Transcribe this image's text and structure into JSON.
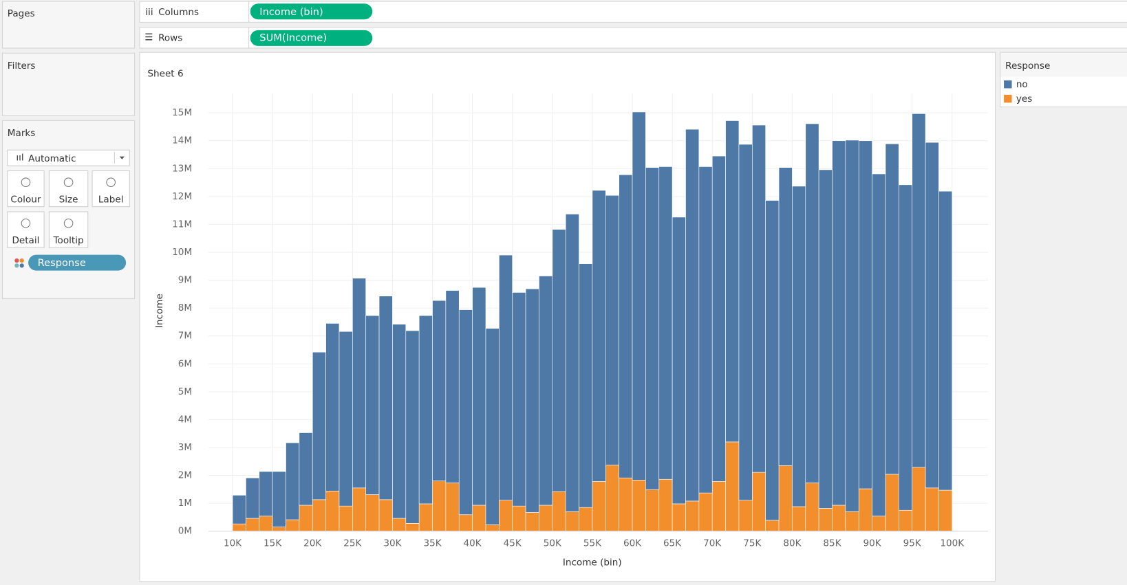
{
  "ui": {
    "pages": "Pages",
    "columns": "Columns",
    "columns_pill": "Income (bin)",
    "rows": "Rows",
    "rows_pill": "SUM(Income)",
    "filters": "Filters",
    "marks": "Marks",
    "mark_type": "Automatic",
    "buttons": [
      "Colour",
      "Size",
      "Label",
      "Detail",
      "Tooltip"
    ],
    "color_pill": "Response",
    "legend_title": "Response"
  },
  "chart_data": {
    "type": "histogram",
    "stacked": true,
    "title": "Sheet 6",
    "xlabel": "Income (bin)",
    "ylabel": "Income",
    "grid": true,
    "bins": [
      10000,
      11666.67,
      13333.33,
      15000,
      16666.67,
      18333.33,
      20000,
      21666.67,
      23333.33,
      25000,
      26666.67,
      28333.33,
      30000,
      31666.67,
      33333.33,
      35000,
      36666.67,
      38333.33,
      40000,
      41666.67,
      43333.33,
      45000,
      46666.67,
      48333.33,
      50000,
      51666.67,
      53333.33,
      55000,
      56666.67,
      58333.33,
      60000,
      61666.67,
      63333.33,
      65000,
      66666.67,
      68333.33,
      70000,
      71666.67,
      73333.33,
      75000,
      76666.67,
      78333.33,
      80000,
      81666.67,
      83333.33,
      85000,
      86666.67,
      88333.33,
      90000,
      91666.67,
      93333.33,
      95000,
      96666.67,
      98333.33,
      100000
    ],
    "series": [
      {
        "name": "yes",
        "color": "#f28e2b",
        "values": [
          260000,
          460000,
          540000,
          150000,
          410000,
          930000,
          1130000,
          1440000,
          900000,
          1550000,
          1310000,
          1130000,
          460000,
          280000,
          980000,
          1800000,
          1730000,
          590000,
          930000,
          230000,
          1110000,
          900000,
          670000,
          930000,
          1420000,
          700000,
          850000,
          1780000,
          2370000,
          1910000,
          1830000,
          1490000,
          1860000,
          980000,
          1080000,
          1370000,
          1780000,
          3200000,
          1110000,
          2110000,
          390000,
          2350000,
          880000,
          1730000,
          820000,
          930000,
          700000,
          1520000,
          540000,
          2040000,
          750000,
          2290000,
          1550000,
          1470000
        ]
      },
      {
        "name": "no",
        "color": "#4e79a7",
        "values": [
          1030000,
          1450000,
          1600000,
          1990000,
          2760000,
          2600000,
          5290000,
          6010000,
          6260000,
          7520000,
          6420000,
          7300000,
          6960000,
          6910000,
          6750000,
          6470000,
          6900000,
          7350000,
          7810000,
          7040000,
          8790000,
          7660000,
          8020000,
          8220000,
          9400000,
          10670000,
          8740000,
          10440000,
          9670000,
          10870000,
          13200000,
          11550000,
          11210000,
          10280000,
          13330000,
          11700000,
          11670000,
          11520000,
          12760000,
          12450000,
          11470000,
          10690000,
          11490000,
          12880000,
          12140000,
          13070000,
          13320000,
          12480000,
          12270000,
          11850000,
          11670000,
          12680000,
          12390000,
          10720000
        ]
      }
    ],
    "xlim": [
      7000,
      104500
    ],
    "xticks": [
      {
        "value": 10000,
        "label": "10K"
      },
      {
        "value": 15000,
        "label": "15K"
      },
      {
        "value": 20000,
        "label": "20K"
      },
      {
        "value": 25000,
        "label": "25K"
      },
      {
        "value": 30000,
        "label": "30K"
      },
      {
        "value": 35000,
        "label": "35K"
      },
      {
        "value": 40000,
        "label": "40K"
      },
      {
        "value": 45000,
        "label": "45K"
      },
      {
        "value": 50000,
        "label": "50K"
      },
      {
        "value": 55000,
        "label": "55K"
      },
      {
        "value": 60000,
        "label": "60K"
      },
      {
        "value": 65000,
        "label": "65K"
      },
      {
        "value": 70000,
        "label": "70K"
      },
      {
        "value": 75000,
        "label": "75K"
      },
      {
        "value": 80000,
        "label": "80K"
      },
      {
        "value": 85000,
        "label": "85K"
      },
      {
        "value": 90000,
        "label": "90K"
      },
      {
        "value": 95000,
        "label": "95K"
      },
      {
        "value": 100000,
        "label": "100K"
      }
    ],
    "ylim": [
      0,
      15700000
    ],
    "yticks": [
      {
        "value": 0,
        "label": "0M"
      },
      {
        "value": 1000000,
        "label": "1M"
      },
      {
        "value": 2000000,
        "label": "2M"
      },
      {
        "value": 3000000,
        "label": "3M"
      },
      {
        "value": 4000000,
        "label": "4M"
      },
      {
        "value": 5000000,
        "label": "5M"
      },
      {
        "value": 6000000,
        "label": "6M"
      },
      {
        "value": 7000000,
        "label": "7M"
      },
      {
        "value": 8000000,
        "label": "8M"
      },
      {
        "value": 9000000,
        "label": "9M"
      },
      {
        "value": 10000000,
        "label": "10M"
      },
      {
        "value": 11000000,
        "label": "11M"
      },
      {
        "value": 12000000,
        "label": "12M"
      },
      {
        "value": 13000000,
        "label": "13M"
      },
      {
        "value": 14000000,
        "label": "14M"
      },
      {
        "value": 15000000,
        "label": "15M"
      }
    ]
  }
}
